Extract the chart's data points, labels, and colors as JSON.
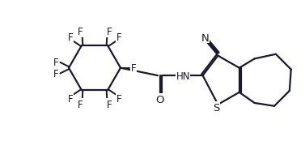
{
  "bg_color": "#ffffff",
  "line_color": "#1a1a2e",
  "text_color": "#1a1a2e",
  "line_width": 1.6,
  "font_size": 8.5,
  "figsize": [
    3.77,
    2.07
  ],
  "dpi": 100,
  "xlim": [
    0,
    10
  ],
  "ylim": [
    0,
    5.5
  ]
}
